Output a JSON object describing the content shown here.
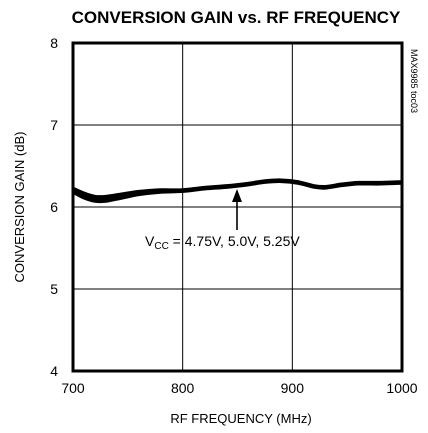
{
  "chart_data": {
    "type": "line",
    "title": "CONVERSION GAIN vs. RF FREQUENCY",
    "xlabel": "RF FREQUENCY (MHz)",
    "ylabel": "CONVERSION GAIN (dB)",
    "xlim": [
      700,
      1000
    ],
    "ylim": [
      4,
      8
    ],
    "xticks": [
      "700",
      "800",
      "900",
      "1000"
    ],
    "yticks": [
      "4",
      "5",
      "6",
      "7",
      "8"
    ],
    "grid": true,
    "side_note": "MAX9985 toc03",
    "annotation": {
      "prefix": "V",
      "subscript": "CC",
      "suffix": " = 4.75V, 5.0V, 5.25V"
    },
    "series": [
      {
        "x": [
          700,
          710,
          720,
          730,
          745,
          760,
          780,
          800,
          820,
          840,
          860,
          875,
          890,
          905,
          920,
          930,
          945,
          960,
          980,
          1000
        ],
        "values": [
          6.23,
          6.17,
          6.13,
          6.13,
          6.16,
          6.19,
          6.21,
          6.21,
          6.24,
          6.26,
          6.29,
          6.32,
          6.33,
          6.31,
          6.26,
          6.25,
          6.28,
          6.3,
          6.3,
          6.31
        ]
      },
      {
        "x": [
          700,
          710,
          720,
          730,
          745,
          760,
          780,
          800,
          820,
          840,
          860,
          875,
          890,
          905,
          920,
          930,
          945,
          960,
          980,
          1000
        ],
        "values": [
          6.2,
          6.14,
          6.1,
          6.1,
          6.13,
          6.17,
          6.2,
          6.2,
          6.23,
          6.25,
          6.28,
          6.31,
          6.32,
          6.3,
          6.25,
          6.24,
          6.27,
          6.29,
          6.29,
          6.3
        ]
      },
      {
        "x": [
          700,
          710,
          720,
          730,
          745,
          760,
          780,
          800,
          820,
          840,
          860,
          875,
          890,
          905,
          920,
          930,
          945,
          960,
          980,
          1000
        ],
        "values": [
          6.18,
          6.11,
          6.07,
          6.07,
          6.11,
          6.15,
          6.18,
          6.19,
          6.22,
          6.24,
          6.27,
          6.3,
          6.31,
          6.29,
          6.24,
          6.23,
          6.26,
          6.28,
          6.28,
          6.29
        ]
      }
    ]
  }
}
